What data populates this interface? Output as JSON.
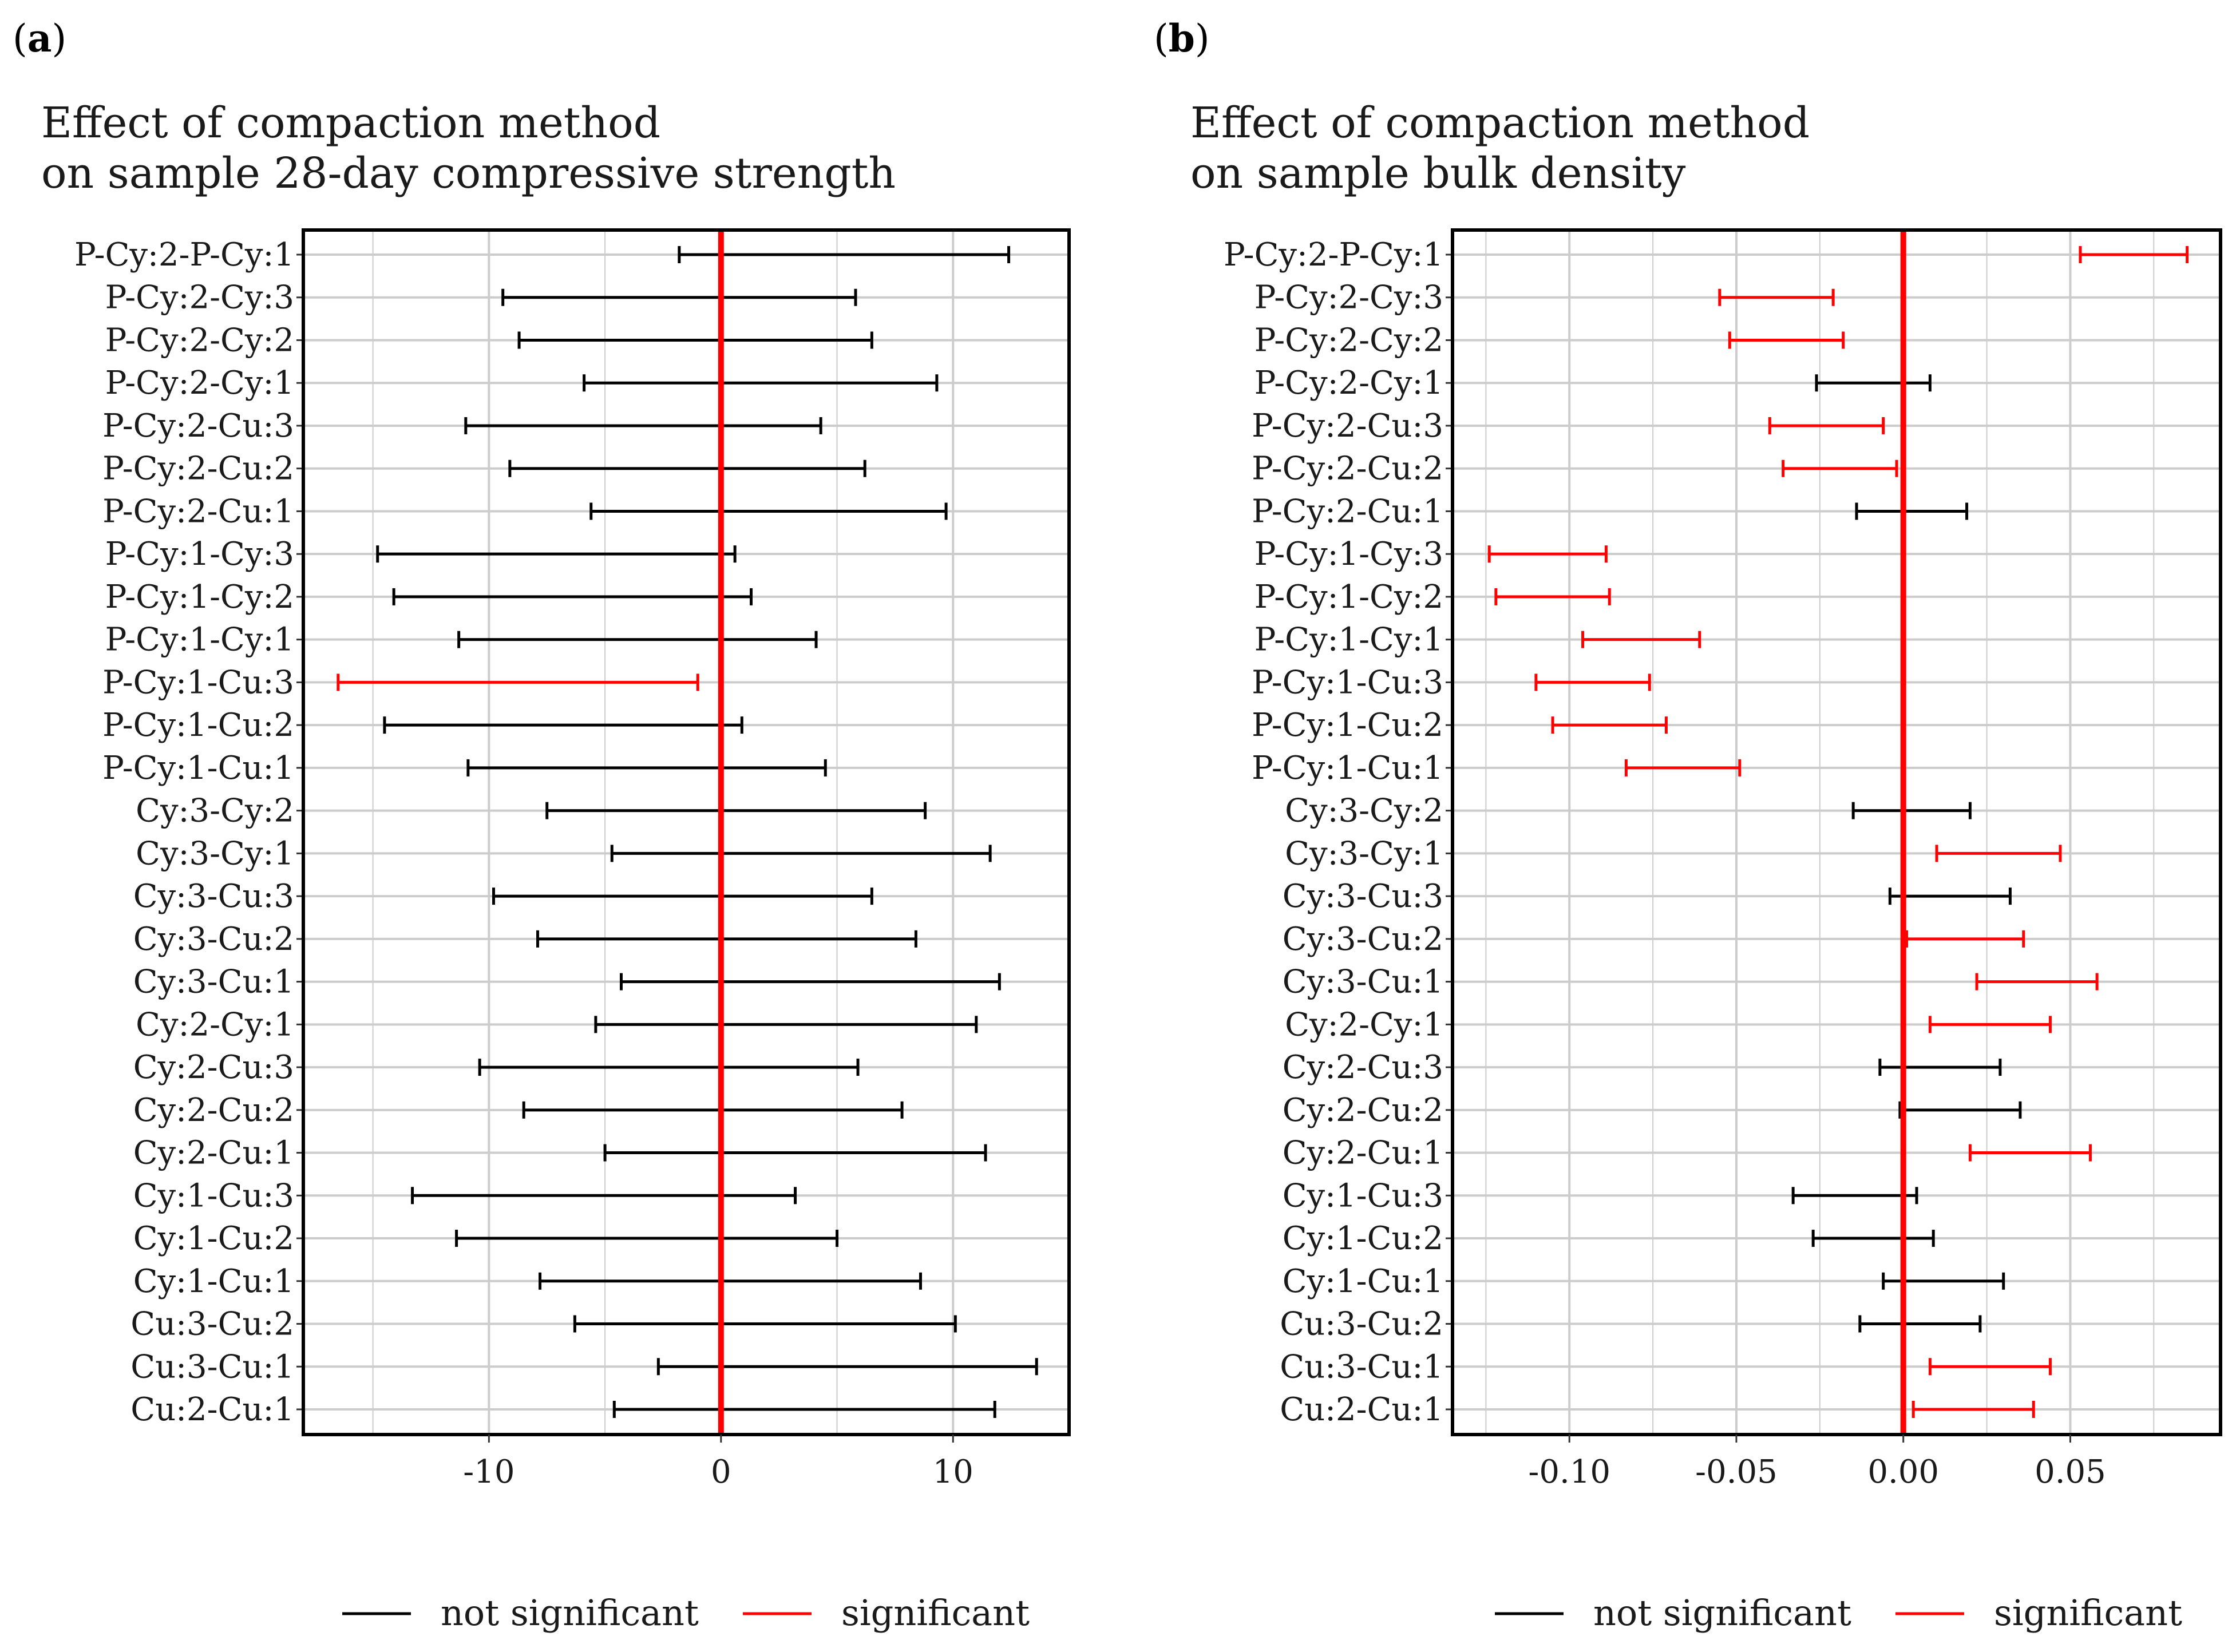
{
  "chart_data": [
    {
      "type": "errorbar",
      "panel_label": "(a)",
      "title_lines": [
        "Effect of compaction method",
        "on sample 28-day compressive strength"
      ],
      "xlabel": "",
      "ylabel": "",
      "xlim": [
        -18,
        15
      ],
      "xticks": [
        -10,
        0,
        10
      ],
      "tick_labels": [
        "-10",
        "0",
        "10"
      ],
      "reference_line": 0,
      "grid": true,
      "categories": [
        "P-Cy:2-P-Cy:1",
        "P-Cy:2-Cy:3",
        "P-Cy:2-Cy:2",
        "P-Cy:2-Cy:1",
        "P-Cy:2-Cu:3",
        "P-Cy:2-Cu:2",
        "P-Cy:2-Cu:1",
        "P-Cy:1-Cy:3",
        "P-Cy:1-Cy:2",
        "P-Cy:1-Cy:1",
        "P-Cy:1-Cu:3",
        "P-Cy:1-Cu:2",
        "P-Cy:1-Cu:1",
        "Cy:3-Cy:2",
        "Cy:3-Cy:1",
        "Cy:3-Cu:3",
        "Cy:3-Cu:2",
        "Cy:3-Cu:1",
        "Cy:2-Cy:1",
        "Cy:2-Cu:3",
        "Cy:2-Cu:2",
        "Cy:2-Cu:1",
        "Cy:1-Cu:3",
        "Cy:1-Cu:2",
        "Cy:1-Cu:1",
        "Cu:3-Cu:2",
        "Cu:3-Cu:1",
        "Cu:2-Cu:1"
      ],
      "lower": [
        -1.8,
        -9.4,
        -8.7,
        -5.9,
        -11.0,
        -9.1,
        -5.6,
        -14.8,
        -14.1,
        -11.3,
        -16.5,
        -14.5,
        -10.9,
        -7.5,
        -4.7,
        -9.8,
        -7.9,
        -4.3,
        -5.4,
        -10.4,
        -8.5,
        -5.0,
        -13.3,
        -11.4,
        -7.8,
        -6.3,
        -2.7,
        -4.6
      ],
      "upper": [
        12.4,
        5.8,
        6.5,
        9.3,
        4.3,
        6.2,
        9.7,
        0.6,
        1.3,
        4.1,
        -1.0,
        0.9,
        4.5,
        8.8,
        11.6,
        6.5,
        8.4,
        12.0,
        11.0,
        5.9,
        7.8,
        11.4,
        3.2,
        5.0,
        8.6,
        10.1,
        13.6,
        11.8
      ],
      "significant": [
        false,
        false,
        false,
        false,
        false,
        false,
        false,
        false,
        false,
        false,
        true,
        false,
        false,
        false,
        false,
        false,
        false,
        false,
        false,
        false,
        false,
        false,
        false,
        false,
        false,
        false,
        false,
        false
      ],
      "legend": [
        "not significant",
        "significant"
      ],
      "legend_position": "bottom",
      "colors": {
        "not_significant": "#000000",
        "significant": "#ff0000",
        "reference": "#ff0000"
      }
    },
    {
      "type": "errorbar",
      "panel_label": "(b)",
      "title_lines": [
        "Effect of compaction method",
        "on sample bulk density"
      ],
      "xlabel": "",
      "ylabel": "",
      "xlim": [
        -0.135,
        0.095
      ],
      "xticks": [
        -0.1,
        -0.05,
        0.0,
        0.05
      ],
      "tick_labels": [
        "-0.10",
        "-0.05",
        "0.00",
        "0.05"
      ],
      "reference_line": 0,
      "grid": true,
      "categories": [
        "P-Cy:2-P-Cy:1",
        "P-Cy:2-Cy:3",
        "P-Cy:2-Cy:2",
        "P-Cy:2-Cy:1",
        "P-Cy:2-Cu:3",
        "P-Cy:2-Cu:2",
        "P-Cy:2-Cu:1",
        "P-Cy:1-Cy:3",
        "P-Cy:1-Cy:2",
        "P-Cy:1-Cy:1",
        "P-Cy:1-Cu:3",
        "P-Cy:1-Cu:2",
        "P-Cy:1-Cu:1",
        "Cy:3-Cy:2",
        "Cy:3-Cy:1",
        "Cy:3-Cu:3",
        "Cy:3-Cu:2",
        "Cy:3-Cu:1",
        "Cy:2-Cy:1",
        "Cy:2-Cu:3",
        "Cy:2-Cu:2",
        "Cy:2-Cu:1",
        "Cy:1-Cu:3",
        "Cy:1-Cu:2",
        "Cy:1-Cu:1",
        "Cu:3-Cu:2",
        "Cu:3-Cu:1",
        "Cu:2-Cu:1"
      ],
      "lower": [
        0.053,
        -0.055,
        -0.052,
        -0.026,
        -0.04,
        -0.036,
        -0.014,
        -0.124,
        -0.122,
        -0.096,
        -0.11,
        -0.105,
        -0.083,
        -0.015,
        0.01,
        -0.004,
        0.001,
        0.022,
        0.008,
        -0.007,
        -0.001,
        0.02,
        -0.033,
        -0.027,
        -0.006,
        -0.013,
        0.008,
        0.003
      ],
      "upper": [
        0.085,
        -0.021,
        -0.018,
        0.008,
        -0.006,
        -0.002,
        0.019,
        -0.089,
        -0.088,
        -0.061,
        -0.076,
        -0.071,
        -0.049,
        0.02,
        0.047,
        0.032,
        0.036,
        0.058,
        0.044,
        0.029,
        0.035,
        0.056,
        0.004,
        0.009,
        0.03,
        0.023,
        0.044,
        0.039
      ],
      "significant": [
        true,
        true,
        true,
        false,
        true,
        true,
        false,
        true,
        true,
        true,
        true,
        true,
        true,
        false,
        true,
        false,
        true,
        true,
        true,
        false,
        false,
        true,
        false,
        false,
        false,
        false,
        true,
        true
      ],
      "legend": [
        "not significant",
        "significant"
      ],
      "legend_position": "bottom",
      "colors": {
        "not_significant": "#000000",
        "significant": "#ff0000",
        "reference": "#ff0000"
      }
    }
  ]
}
